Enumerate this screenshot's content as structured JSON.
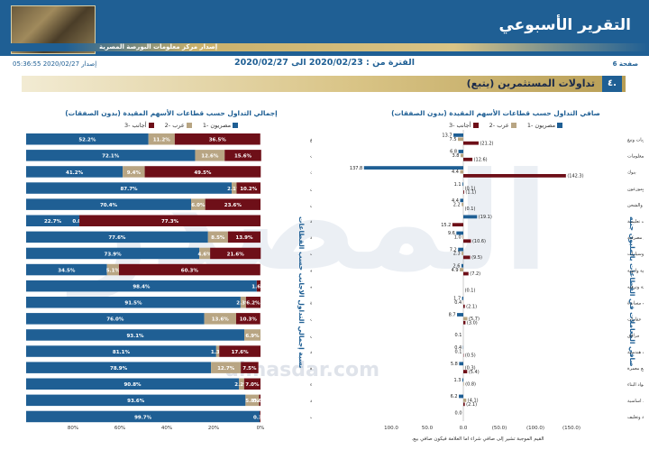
{
  "header": {
    "title": "التقرير الأسبوعي",
    "subtitle": "إصدار مركز معلومات البورصة المصرية",
    "page_label": "صفحة 6",
    "period_text": "الفترة من : 2020/02/23 الى 2020/02/27",
    "issue_text": "إصدار 2020/02/27 05:36:55"
  },
  "section": {
    "number": "٤.",
    "title": "تداولات المستثمرين  (يتبع)"
  },
  "watermark": {
    "logo_text": "المصدر",
    "url": "almasdar.com"
  },
  "colors": {
    "series1": "#1f5f94",
    "series2": "#b8a583",
    "series3": "#6e0f18",
    "title": "#1f5f94"
  },
  "chart_left": {
    "title": "إجمالي التداول حسب قطاعات الأسهم المقيدة (بدون الصفقات)",
    "side_label": "نسبة إجمالي التداول الاجانب حسب القطاعات",
    "legend": [
      "مصريون -1",
      "عرب -2",
      "أجانب -3"
    ]
  },
  "chart_right": {
    "title": "صافي التداول حسب قطاعات الأسهم المقيدة (بدون الصفقات)",
    "side_label": "صافي المعاملات في القطاعات بالمليون جنيه",
    "legend": [
      "مصريون -1",
      "عرب -2",
      "أجانب -3"
    ],
    "footnote": "القيم الموجبة تشير إلى صافي شراء اما العلامة فيكون صافي بيع."
  },
  "chart_data": [
    {
      "type": "bar",
      "orientation": "horizontal",
      "stacked": true,
      "title": "إجمالي التداول حسب قطاعات الأسهم المقيدة (بدون الصفقات)",
      "categories": [
        "اغذية ومشروبات وتبغ",
        "اتصالات واعلام وتكنولوجيا المعلومات",
        "بنوك",
        "تجارة وموزعون",
        "خدمات النقل والشحن",
        "خدمات تعليمية",
        "خدمات مالية غير مصرفية",
        "خدمات ومنتجات صناعية وسيارات",
        "رعاية صحية وادوية",
        "سياحة وترفيه",
        "طاقة وخدمات مساندة",
        "عقارات",
        "مرافق",
        "مقاولات وإنشاءات هندسية",
        "منسوجات وسلع معمرة",
        "مواد البناء",
        "موارد اساسية",
        "ورق ومواد تعبئة وتغليف"
      ],
      "series": [
        {
          "name": "مصريون -1",
          "values": [
            52.2,
            72.1,
            41.2,
            87.7,
            70.4,
            22.7,
            77.6,
            73.9,
            34.5,
            98.4,
            91.5,
            76.0,
            93.1,
            81.1,
            78.9,
            90.8,
            93.6,
            99.7
          ]
        },
        {
          "name": "عرب -2",
          "values": [
            11.2,
            12.6,
            9.4,
            2.1,
            6.0,
            0.0,
            8.5,
            4.6,
            5.1,
            0.0,
            2.3,
            13.6,
            6.9,
            1.3,
            12.7,
            2.2,
            5.8,
            0.0
          ]
        },
        {
          "name": "أجانب -3",
          "values": [
            36.5,
            15.6,
            49.5,
            10.2,
            23.6,
            77.3,
            13.9,
            21.6,
            60.3,
            1.6,
            6.2,
            10.3,
            0.0,
            17.6,
            7.5,
            7.0,
            0.6,
            0.3
          ]
        }
      ],
      "x_ticks": [
        "0%",
        "20%",
        "40%",
        "60%",
        "80%"
      ],
      "xlim": [
        0,
        100
      ]
    },
    {
      "type": "bar",
      "orientation": "horizontal",
      "grouped": true,
      "title": "صافي التداول حسب قطاعات الأسهم المقيدة (بدون الصفقات)",
      "categories": [
        "اغذية ومشروبات وتبغ",
        "اتصالات واعلام وتكنولوجيا المعلومات",
        "بنوك",
        "تجارة وموزعون",
        "خدمات النقل والشحن",
        "خدمات تعليمية",
        "خدمات مالية غير مصرفية",
        "خدمات ومنتجات صناعية وسيارات",
        "رعاية صحية وادوية",
        "سياحة وترفيه",
        "طاقة وخدمات مساندة",
        "عقارات",
        "مرافق",
        "مقاولات وإنشاءات هندسية",
        "منسوجات وسلع معمرة",
        "مواد البناء",
        "موارد اساسية",
        "ورق ومواد تعبئة وتغليف"
      ],
      "series": [
        {
          "name": "مصريون -1",
          "values": [
            13.7,
            6.8,
            137.8,
            1.1,
            4.4,
            -19.1,
            9.6,
            7.2,
            2.6,
            0.0,
            1.7,
            8.7,
            0.0,
            0.4,
            5.8,
            1.3,
            6.2,
            0.0
          ]
        },
        {
          "name": "عرب -2",
          "values": [
            7.5,
            3.8,
            4.4,
            -0.1,
            2.2,
            0.0,
            1.0,
            2.3,
            4.9,
            0.0,
            0.4,
            -5.7,
            0.1,
            0.1,
            -0.3,
            -0.8,
            -4.1,
            0.0
          ]
        },
        {
          "name": "أجانب -3",
          "values": [
            -21.2,
            -12.6,
            -142.3,
            -1.1,
            -0.1,
            15.2,
            -10.6,
            -9.5,
            -7.2,
            -0.1,
            -2.1,
            -3.0,
            0.0,
            -0.5,
            -5.4,
            0.0,
            -2.1,
            0.0
          ]
        }
      ],
      "value_labels": [
        [
          "13.7",
          "7.5",
          "(21.2)"
        ],
        [
          "6.8",
          "3.8",
          "(12.6)"
        ],
        [
          "137.8",
          "4.4",
          "(142.3)"
        ],
        [
          "1.1",
          "(0.1)",
          "(1.1)"
        ],
        [
          "4.4",
          "2.2",
          "(0.1)"
        ],
        [
          "(19.1)",
          "",
          "15.2"
        ],
        [
          "9.6",
          "1.0",
          "(10.6)"
        ],
        [
          "7.2",
          "2.3",
          "(9.5)"
        ],
        [
          "2.6",
          "4.9",
          "(7.2)"
        ],
        [
          "",
          "",
          "(0.1)"
        ],
        [
          "1.7",
          "0.4",
          "(2.1)"
        ],
        [
          "8.7",
          "(5.7)",
          "(3.0)"
        ],
        [
          "",
          "0.1",
          ""
        ],
        [
          "0.4",
          "0.1",
          "(0.5)"
        ],
        [
          "5.8",
          "(0.3)",
          "(5.4)"
        ],
        [
          "1.3",
          "(0.8)",
          ""
        ],
        [
          "6.2",
          "(4.1)",
          "(2.1)"
        ],
        [
          "0.0",
          "",
          ""
        ]
      ],
      "x_ticks": [
        "100.0",
        "50.0",
        "0.0",
        "(50.0)",
        "(100.0)",
        "(150.0)"
      ],
      "xlim": [
        -150,
        150
      ],
      "reversed_x": true
    }
  ]
}
